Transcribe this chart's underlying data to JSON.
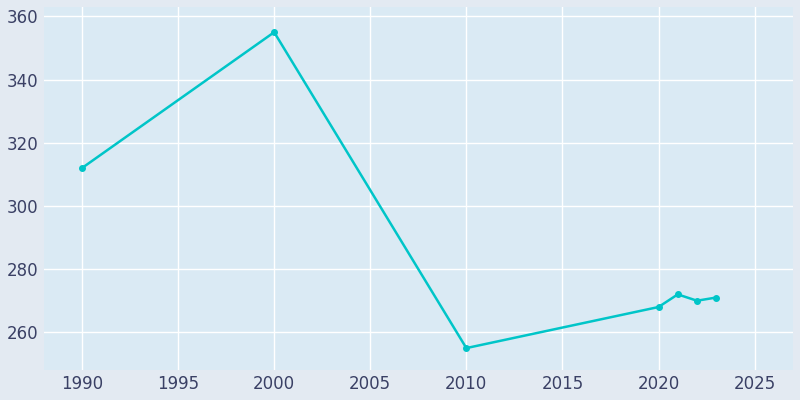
{
  "years": [
    1990,
    2000,
    2010,
    2020,
    2021,
    2022,
    2023
  ],
  "population": [
    312,
    355,
    255,
    268,
    272,
    270,
    271
  ],
  "line_color": "#00C5C8",
  "marker_color": "#00C5C8",
  "fig_bg_color": "#E3EAF2",
  "plot_bg_color": "#DAEAF4",
  "grid_color": "#FFFFFF",
  "tick_color": "#3A4065",
  "xlim": [
    1988,
    2027
  ],
  "ylim": [
    248,
    363
  ],
  "xticks": [
    1990,
    1995,
    2000,
    2005,
    2010,
    2015,
    2020,
    2025
  ],
  "yticks": [
    260,
    280,
    300,
    320,
    340,
    360
  ],
  "tick_fontsize": 12
}
